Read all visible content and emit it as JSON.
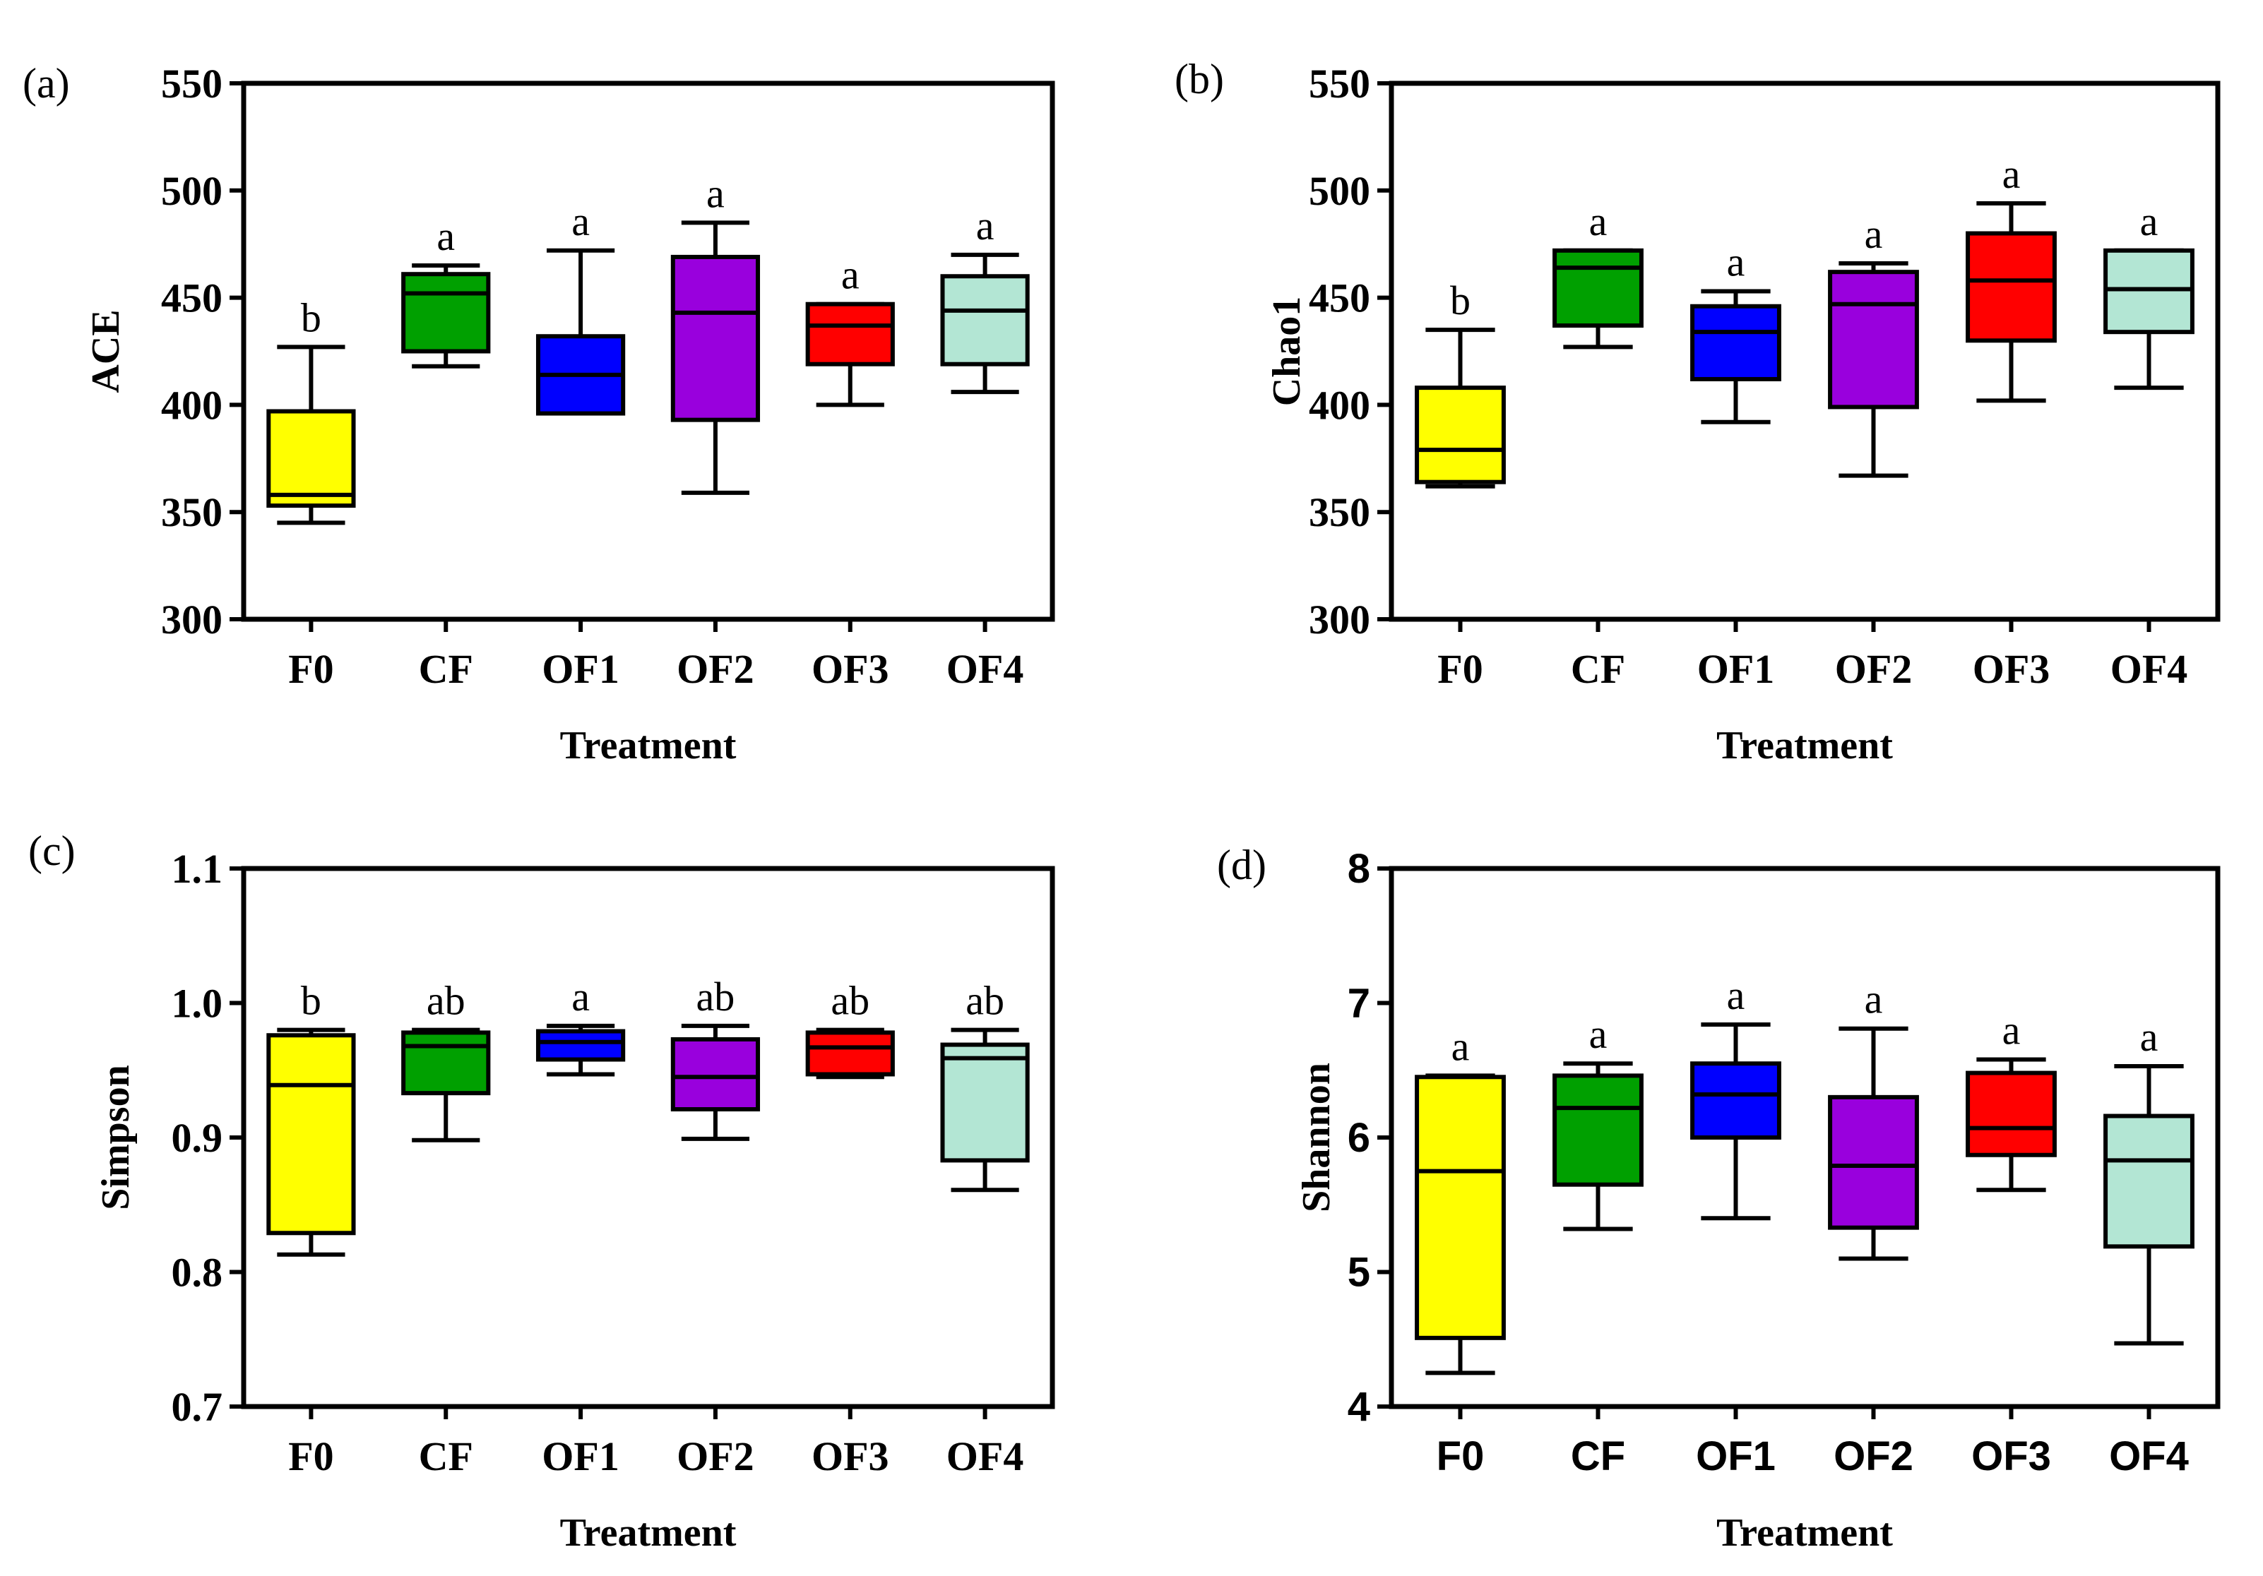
{
  "chart_data": [
    {
      "panel": "(a)",
      "type": "box",
      "xlabel": "Treatment",
      "ylabel": "ACE",
      "ylim": [
        300,
        550
      ],
      "yticks": [
        "300",
        "350",
        "400",
        "450",
        "500",
        "550"
      ],
      "categories": [
        "F0",
        "CF",
        "OF1",
        "OF2",
        "OF3",
        "OF4"
      ],
      "colors": [
        "#ffff00",
        "#00a000",
        "#0000ff",
        "#9900dd",
        "#ff0000",
        "#b3e6d4"
      ],
      "boxes": [
        {
          "min": 345,
          "q1": 353,
          "median": 358,
          "q3": 397,
          "max": 427
        },
        {
          "min": 418,
          "q1": 425,
          "median": 452,
          "q3": 461,
          "max": 465
        },
        {
          "min": 396,
          "q1": 396,
          "median": 414,
          "q3": 432,
          "max": 472
        },
        {
          "min": 359,
          "q1": 393,
          "median": 443,
          "q3": 469,
          "max": 485
        },
        {
          "min": 400,
          "q1": 419,
          "median": 437,
          "q3": 447,
          "max": 447
        },
        {
          "min": 406,
          "q1": 419,
          "median": 444,
          "q3": 460,
          "max": 470
        }
      ],
      "letters": [
        "b",
        "a",
        "a",
        "a",
        "a",
        "a"
      ]
    },
    {
      "panel": "(b)",
      "type": "box",
      "xlabel": "Treatment",
      "ylabel": "Chao1",
      "ylim": [
        300,
        550
      ],
      "yticks": [
        "300",
        "350",
        "400",
        "450",
        "500",
        "550"
      ],
      "categories": [
        "F0",
        "CF",
        "OF1",
        "OF2",
        "OF3",
        "OF4"
      ],
      "colors": [
        "#ffff00",
        "#00a000",
        "#0000ff",
        "#9900dd",
        "#ff0000",
        "#b3e6d4"
      ],
      "boxes": [
        {
          "min": 362,
          "q1": 364,
          "median": 379,
          "q3": 408,
          "max": 435
        },
        {
          "min": 427,
          "q1": 437,
          "median": 464,
          "q3": 472,
          "max": 472
        },
        {
          "min": 392,
          "q1": 412,
          "median": 434,
          "q3": 446,
          "max": 453
        },
        {
          "min": 367,
          "q1": 399,
          "median": 447,
          "q3": 462,
          "max": 466
        },
        {
          "min": 402,
          "q1": 430,
          "median": 458,
          "q3": 480,
          "max": 494
        },
        {
          "min": 408,
          "q1": 434,
          "median": 454,
          "q3": 472,
          "max": 472
        }
      ],
      "letters": [
        "b",
        "a",
        "a",
        "a",
        "a",
        "a"
      ]
    },
    {
      "panel": "(c)",
      "type": "box",
      "xlabel": "Treatment",
      "ylabel": "Simpson",
      "ylim": [
        0.7,
        1.1
      ],
      "yticks": [
        "0.7",
        "0.8",
        "0.9",
        "1.0",
        "1.1"
      ],
      "categories": [
        "F0",
        "CF",
        "OF1",
        "OF2",
        "OF3",
        "OF4"
      ],
      "colors": [
        "#ffff00",
        "#00a000",
        "#0000ff",
        "#9900dd",
        "#ff0000",
        "#b3e6d4"
      ],
      "boxes": [
        {
          "min": 0.813,
          "q1": 0.829,
          "median": 0.939,
          "q3": 0.976,
          "max": 0.98
        },
        {
          "min": 0.898,
          "q1": 0.933,
          "median": 0.968,
          "q3": 0.978,
          "max": 0.98
        },
        {
          "min": 0.947,
          "q1": 0.958,
          "median": 0.971,
          "q3": 0.979,
          "max": 0.983
        },
        {
          "min": 0.899,
          "q1": 0.921,
          "median": 0.945,
          "q3": 0.973,
          "max": 0.983
        },
        {
          "min": 0.945,
          "q1": 0.947,
          "median": 0.967,
          "q3": 0.978,
          "max": 0.98
        },
        {
          "min": 0.861,
          "q1": 0.883,
          "median": 0.959,
          "q3": 0.969,
          "max": 0.98
        }
      ],
      "letters": [
        "b",
        "ab",
        "a",
        "ab",
        "ab",
        "ab"
      ]
    },
    {
      "panel": "(d)",
      "type": "box",
      "xlabel": "Treatment",
      "ylabel": "Shannon",
      "ylim": [
        4,
        8
      ],
      "yticks": [
        "4",
        "5",
        "6",
        "7",
        "8"
      ],
      "categories": [
        "F0",
        "CF",
        "OF1",
        "OF2",
        "OF3",
        "OF4"
      ],
      "colors": [
        "#ffff00",
        "#00a000",
        "#0000ff",
        "#9900dd",
        "#ff0000",
        "#b3e6d4"
      ],
      "boxes": [
        {
          "min": 4.25,
          "q1": 4.51,
          "median": 5.75,
          "q3": 6.45,
          "max": 6.46
        },
        {
          "min": 5.32,
          "q1": 5.65,
          "median": 6.22,
          "q3": 6.46,
          "max": 6.55
        },
        {
          "min": 5.4,
          "q1": 6.0,
          "median": 6.32,
          "q3": 6.55,
          "max": 6.84
        },
        {
          "min": 5.1,
          "q1": 5.33,
          "median": 5.79,
          "q3": 6.3,
          "max": 6.81
        },
        {
          "min": 5.61,
          "q1": 5.87,
          "median": 6.07,
          "q3": 6.48,
          "max": 6.58
        },
        {
          "min": 4.47,
          "q1": 5.19,
          "median": 5.83,
          "q3": 6.16,
          "max": 6.53
        }
      ],
      "letters": [
        "a",
        "a",
        "a",
        "a",
        "a",
        "a"
      ]
    }
  ]
}
